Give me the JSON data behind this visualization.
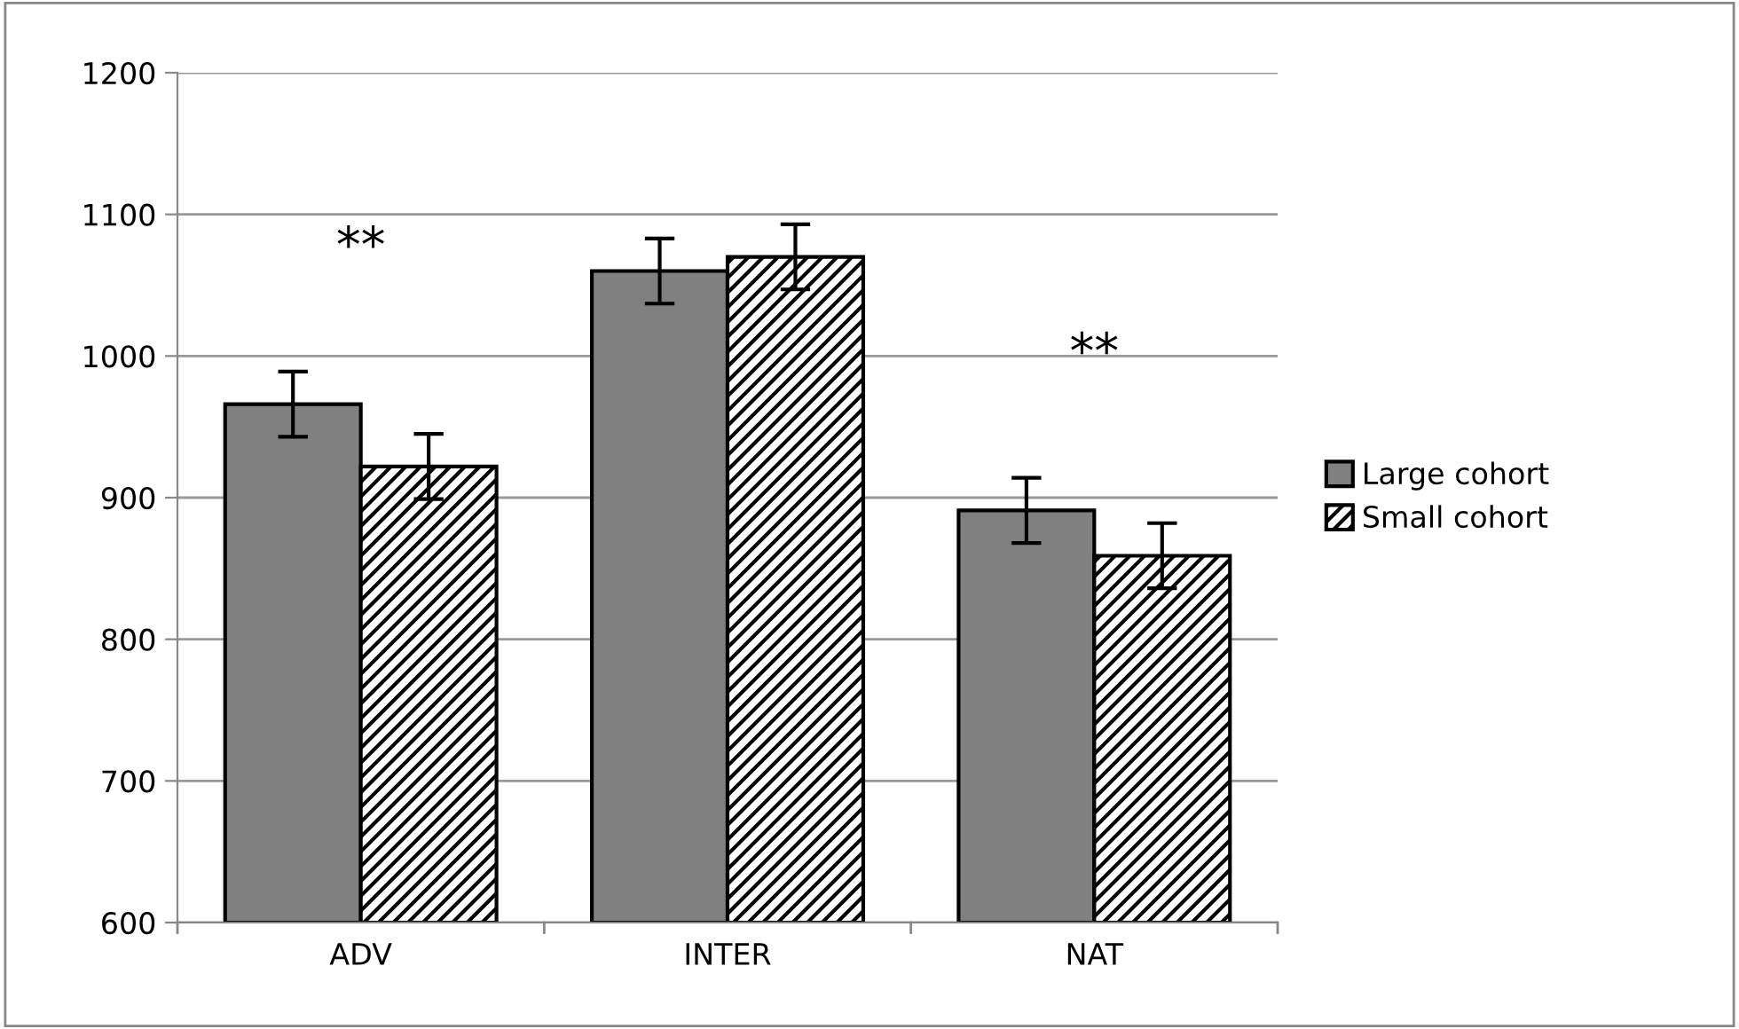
{
  "chart_data": {
    "type": "bar",
    "categories": [
      "ADV",
      "INTER",
      "NAT"
    ],
    "series": [
      {
        "name": "Large cohort",
        "color": "#808080",
        "values": [
          966,
          1060,
          891
        ],
        "errors": [
          23,
          23,
          23
        ]
      },
      {
        "name": "Small cohort",
        "color": "#000000",
        "values": [
          922,
          1070,
          859
        ],
        "errors": [
          23,
          23,
          23
        ]
      }
    ],
    "ylim": [
      600,
      1200
    ],
    "yticks": [
      600,
      700,
      800,
      900,
      1000,
      1100,
      1200
    ],
    "grid": "y",
    "legend": "right",
    "annotations": [
      "**",
      "**"
    ]
  }
}
